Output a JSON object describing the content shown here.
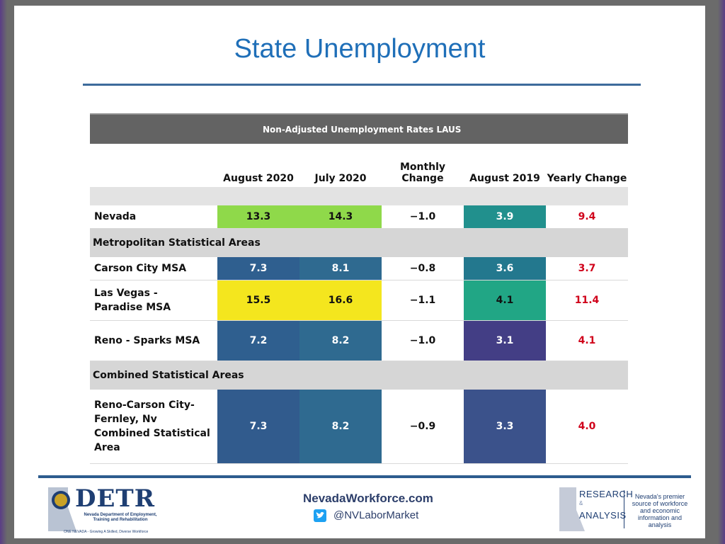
{
  "title": "State Unemployment",
  "table": {
    "caption": "Non-Adjusted Unemployment Rates LAUS",
    "columns": [
      "August 2020",
      "July 2020",
      "Monthly Change",
      "August 2019",
      "Yearly Change"
    ],
    "nevada": {
      "name": "Nevada",
      "aug2020": "13.3",
      "jul2020": "14.3",
      "monthly": "−1.0",
      "aug2019": "3.9",
      "yearly": "9.4"
    },
    "msa_label": "Metropolitan Statistical Areas",
    "carson": {
      "name": "Carson City MSA",
      "aug2020": "7.3",
      "jul2020": "8.1",
      "monthly": "−0.8",
      "aug2019": "3.6",
      "yearly": "3.7"
    },
    "lasvegas": {
      "name": "Las Vegas - Paradise MSA",
      "aug2020": "15.5",
      "jul2020": "16.6",
      "monthly": "−1.1",
      "aug2019": "4.1",
      "yearly": "11.4"
    },
    "reno": {
      "name": "Reno - Sparks MSA",
      "aug2020": "7.2",
      "jul2020": "8.2",
      "monthly": "−1.0",
      "aug2019": "3.1",
      "yearly": "4.1"
    },
    "csa_label": "Combined Statistical Areas",
    "combined": {
      "name": "Reno-Carson City-Fernley, Nv Combined Statistical Area",
      "aug2020": "7.3",
      "jul2020": "8.2",
      "monthly": "−0.9",
      "aug2019": "3.3",
      "yearly": "4.0"
    }
  },
  "colors": {
    "nevada_aug2020": "#8fd94a",
    "nevada_jul2020": "#8fd94a",
    "nevada_aug2019": "#21908d",
    "carson_aug2020": "#2f5f8f",
    "carson_jul2020": "#2f6a90",
    "carson_aug2019": "#23788e",
    "lasvegas_aug2020": "#f4e61e",
    "lasvegas_jul2020": "#f4e61e",
    "lasvegas_aug2019": "#21a685",
    "reno_aug2020": "#2f5f8f",
    "reno_jul2020": "#2f6a90",
    "reno_aug2019": "#433e85",
    "combined_aug2020": "#315b8d",
    "combined_jul2020": "#2f6a90",
    "combined_aug2019": "#3b528b",
    "yearly_text": "#d0021b"
  },
  "footer": {
    "detr_logo": "DETR",
    "detr_subtitle": "Nevada Department of Employment, Training and Rehabilitation",
    "detr_tagline": "ONE NEVADA - Growing A Skilled, Diverse Workforce",
    "website": "NevadaWorkforce.com",
    "twitter_icon": "twitter-icon",
    "handle": "@NVLaborMarket",
    "ra_line1": "RESEARCH",
    "ra_amp": "&",
    "ra_line2": "ANALYSIS",
    "ra_description": "Nevada's premier source of workforce and economic information and analysis"
  }
}
